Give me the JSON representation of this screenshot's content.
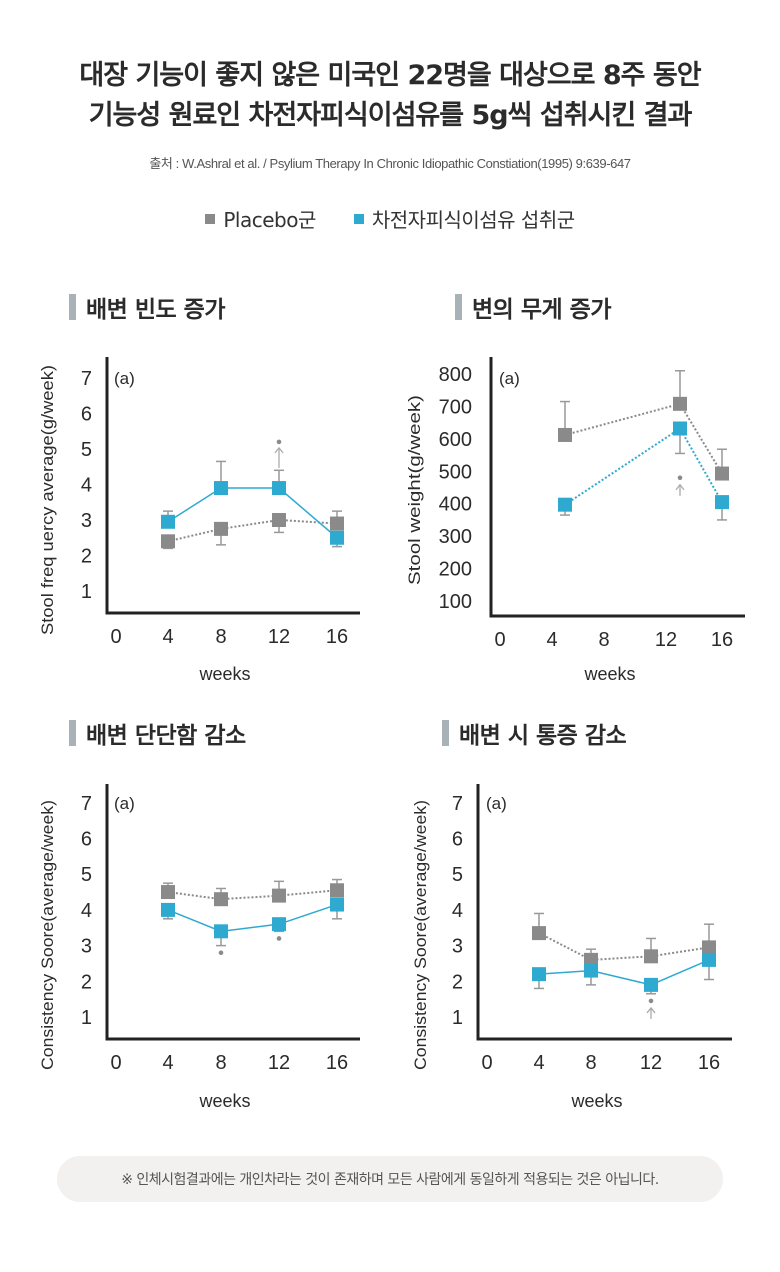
{
  "header": {
    "title_line1": "대장 기능이 좋지 않은 미국인 22명을 대상으로 8주 동안",
    "title_line2": "기능성 원료인 차전자피식이섬유를 5g씩 섭취시킨 결과",
    "source": "출처 : W.Ashral et al. / Psylium Therapy In Chronic Idiopathic Constiation(1995) 9:639-647"
  },
  "legend": {
    "items": [
      {
        "label": "Placebo군",
        "color": "#8a8a8a"
      },
      {
        "label": "차전자피식이섬유 섭취군",
        "color": "#2eaad0"
      }
    ]
  },
  "colors": {
    "placebo": "#8a8a8a",
    "treatment": "#2eaad0",
    "axis": "#222222",
    "errorbar": "#999999",
    "annotation": "#8a8a8a"
  },
  "panels": [
    {
      "heading": "배변 빈도 증가"
    },
    {
      "heading": "변의 무게 증가"
    },
    {
      "heading": "배변 단단함 감소"
    },
    {
      "heading": "배변 시 통증 감소"
    }
  ],
  "footer": {
    "note": "※ 인체시험결과에는 개인차라는 것이 존재하며 모든 사람에게 동일하게 적용되는 것은 아닙니다."
  },
  "chart_data": [
    {
      "type": "line",
      "title": "배변 빈도 증가",
      "panel_label": "(a)",
      "xlabel": "weeks",
      "ylabel": "Stool freq uercy average(g/week)",
      "xticks": [
        0,
        4,
        8,
        12,
        16
      ],
      "yticks": [
        1,
        2,
        3,
        4,
        5,
        6,
        7
      ],
      "xlim": [
        0,
        18
      ],
      "ylim": [
        0.3,
        7.3
      ],
      "grid": false,
      "series": [
        {
          "name": "Placebo군",
          "style": "dotted",
          "x": [
            4,
            8,
            12,
            16
          ],
          "y": [
            2.4,
            2.75,
            3.0,
            2.9
          ],
          "err_dir": [
            "down",
            "down",
            "down",
            "up"
          ],
          "err": [
            2.2,
            2.3,
            2.65,
            3.25
          ]
        },
        {
          "name": "차전자피식이섬유 섭취군",
          "style": "solid",
          "x": [
            4,
            8,
            12,
            16
          ],
          "y": [
            2.95,
            3.9,
            3.9,
            2.5
          ],
          "err_dir": [
            "up",
            "up",
            "up",
            "down"
          ],
          "err": [
            3.25,
            4.65,
            4.4,
            2.25
          ]
        }
      ],
      "annotations": [
        {
          "x": 12,
          "y": 5.2,
          "text": "•",
          "arrow": "up",
          "position": "above"
        }
      ]
    },
    {
      "type": "line",
      "title": "변의 무게 증가",
      "panel_label": "(a)",
      "xlabel": "weeks",
      "ylabel": "Stool weight(g/week)",
      "xticks": [
        0,
        4,
        8,
        12,
        16
      ],
      "yticks": [
        100,
        200,
        300,
        400,
        500,
        600,
        700,
        800
      ],
      "xlim": [
        0,
        18
      ],
      "ylim": [
        60,
        820
      ],
      "grid": false,
      "series": [
        {
          "name": "Placebo군",
          "style": "dotted",
          "x": [
            5,
            13,
            16
          ],
          "y": [
            612,
            708,
            493
          ],
          "err_dir": [
            "up",
            "up",
            "up"
          ],
          "err": [
            715,
            810,
            568
          ]
        },
        {
          "name": "차전자피식이섬유 섭취군",
          "style": "dotted",
          "x": [
            5,
            13,
            16
          ],
          "y": [
            397,
            632,
            405
          ],
          "err_dir": [
            "down",
            "down",
            "down"
          ],
          "err": [
            365,
            555,
            350
          ]
        }
      ],
      "annotations": [
        {
          "x": 13,
          "y": 480,
          "text": "•",
          "arrow": "up",
          "position": "below"
        }
      ]
    },
    {
      "type": "line",
      "title": "배변 단단함 감소",
      "panel_label": "(a)",
      "xlabel": "weeks",
      "ylabel": "Consistency Soore(average/week)",
      "xticks": [
        0,
        4,
        8,
        12,
        16
      ],
      "yticks": [
        1,
        2,
        3,
        4,
        5,
        6,
        7
      ],
      "xlim": [
        0,
        18
      ],
      "ylim": [
        0.4,
        7.3
      ],
      "grid": false,
      "series": [
        {
          "name": "Placebo군",
          "style": "dotted",
          "x": [
            4,
            8,
            12,
            16
          ],
          "y": [
            4.5,
            4.3,
            4.4,
            4.55
          ],
          "err_dir": [
            "up",
            "up",
            "up",
            "up"
          ],
          "err": [
            4.75,
            4.6,
            4.8,
            4.85
          ]
        },
        {
          "name": "차전자피식이섬유 섭취군",
          "style": "solid",
          "x": [
            4,
            8,
            12,
            16
          ],
          "y": [
            4.0,
            3.4,
            3.6,
            4.15
          ],
          "err_dir": [
            "down",
            "down",
            "down",
            "down"
          ],
          "err": [
            3.75,
            3.0,
            3.4,
            3.75
          ]
        }
      ],
      "annotations": [
        {
          "x": 8,
          "y": 2.8,
          "text": "•",
          "arrow": "none",
          "position": "below"
        },
        {
          "x": 12,
          "y": 3.2,
          "text": "•",
          "arrow": "none",
          "position": "below"
        }
      ]
    },
    {
      "type": "line",
      "title": "배변 시 통증 감소",
      "panel_label": "(a)",
      "xlabel": "weeks",
      "ylabel": "Consistency Soore(average/week)",
      "xticks": [
        0,
        4,
        8,
        12,
        16
      ],
      "yticks": [
        1,
        2,
        3,
        4,
        5,
        6,
        7
      ],
      "xlim": [
        0,
        18
      ],
      "ylim": [
        0.4,
        7.3
      ],
      "grid": false,
      "series": [
        {
          "name": "Placebo군",
          "style": "dotted",
          "x": [
            4,
            8,
            12,
            16
          ],
          "y": [
            3.35,
            2.6,
            2.7,
            2.95
          ],
          "err_dir": [
            "up",
            "up",
            "up",
            "up"
          ],
          "err": [
            3.9,
            2.9,
            3.2,
            3.6
          ]
        },
        {
          "name": "차전자피식이섬유 섭취군",
          "style": "solid",
          "x": [
            4,
            8,
            12,
            16
          ],
          "y": [
            2.2,
            2.3,
            1.9,
            2.6
          ],
          "err_dir": [
            "down",
            "down",
            "down",
            "down"
          ],
          "err": [
            1.8,
            1.9,
            1.65,
            2.05
          ]
        }
      ],
      "annotations": [
        {
          "x": 12,
          "y": 1.45,
          "text": "•",
          "arrow": "up",
          "position": "below"
        }
      ]
    }
  ]
}
